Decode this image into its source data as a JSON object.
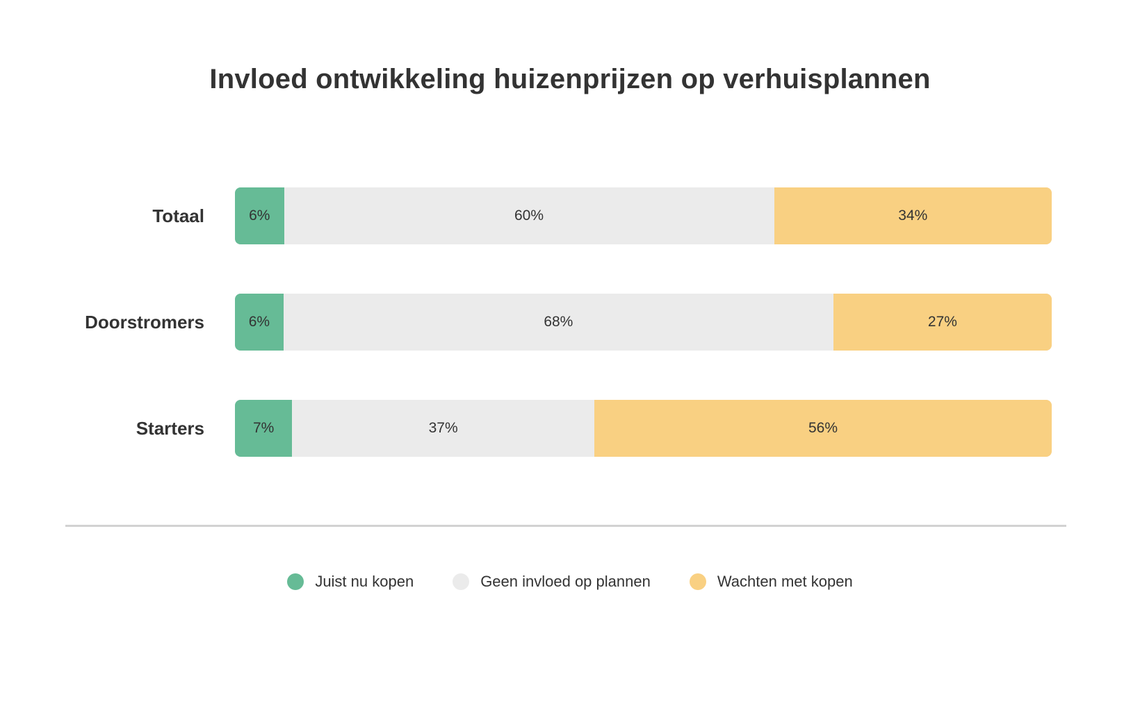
{
  "chart_data": {
    "type": "bar",
    "orientation": "horizontal",
    "stacked": true,
    "title": "Invloed ontwikkeling huizenprijzen op verhuisplannen",
    "categories": [
      "Totaal",
      "Doorstromers",
      "Starters"
    ],
    "series": [
      {
        "name": "Juist nu kopen",
        "color": "#66bb96",
        "values": [
          6,
          6,
          7
        ],
        "labels": [
          "6%",
          "6%",
          "7%"
        ]
      },
      {
        "name": "Geen invloed op plannen",
        "color": "#ebebeb",
        "values": [
          60,
          68,
          37
        ],
        "labels": [
          "60%",
          "68%",
          "37%"
        ]
      },
      {
        "name": "Wachten met kopen",
        "color": "#f9d082",
        "values": [
          34,
          27,
          56
        ],
        "labels": [
          "34%",
          "27%",
          "56%"
        ]
      }
    ],
    "xlim": [
      0,
      100
    ],
    "legend_position": "bottom",
    "grid": false
  }
}
